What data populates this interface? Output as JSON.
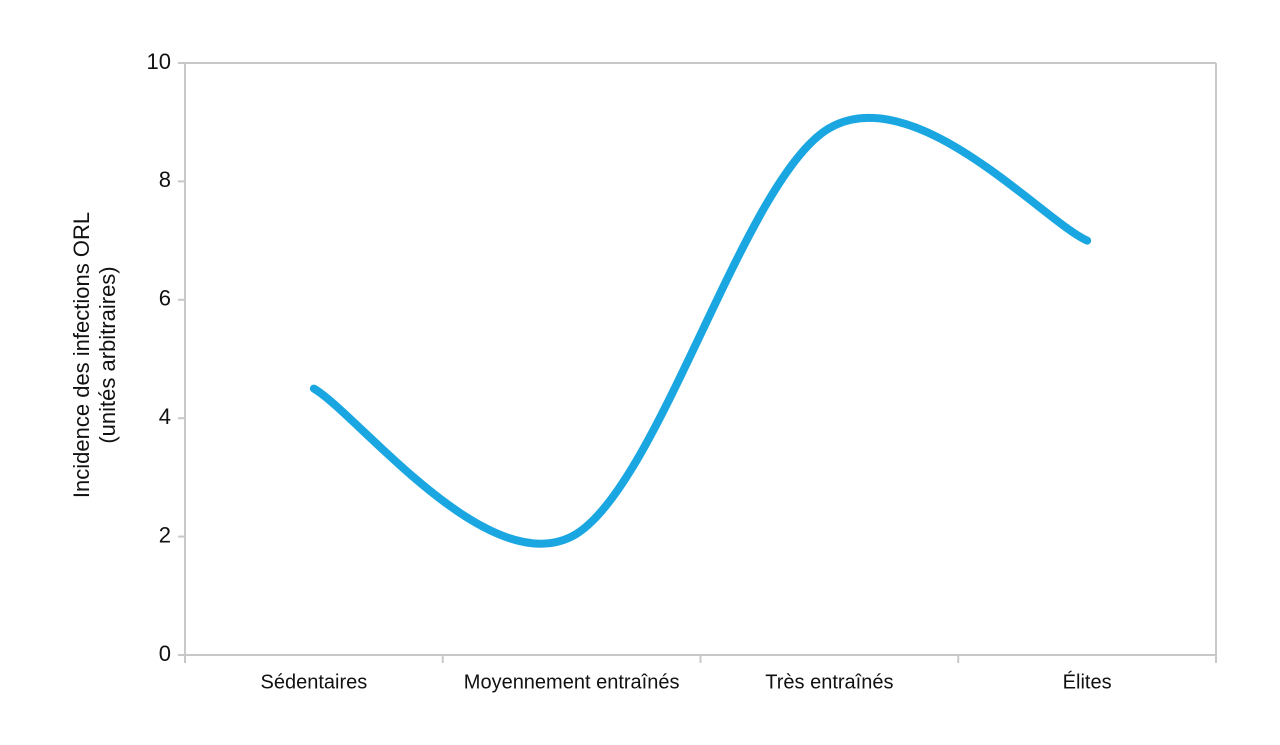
{
  "chart_data": {
    "type": "line",
    "y_label": [
      "Incidence des infections ORL",
      "(unités arbitraires)"
    ],
    "categories": [
      "Sédentaires",
      "Moyennement entraînés",
      "Très entraînés",
      "Élites"
    ],
    "series": [
      {
        "color": "#1aa7e1",
        "values": [
          4.5,
          2.0,
          8.9,
          7.0
        ]
      }
    ],
    "ylim": [
      0,
      10
    ],
    "yticks": [
      0,
      2,
      4,
      6,
      8,
      10
    ],
    "smooth": true
  }
}
